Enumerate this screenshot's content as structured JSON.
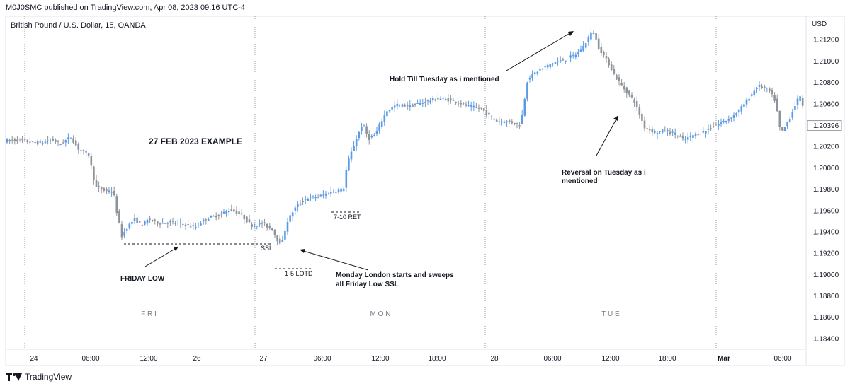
{
  "header": {
    "published_line": "M0J0SMC published on TradingView.com, Apr 08, 2023 09:16 UTC-4"
  },
  "footer": {
    "brand": "TradingView"
  },
  "chart_data": {
    "type": "candlestick",
    "symbol_line": "British Pound / U.S. Dollar, 15, OANDA",
    "currency_label": "USD",
    "ylim": [
      1.183,
      1.2142
    ],
    "y_ticks": [
      "1.21200",
      "1.21000",
      "1.20800",
      "1.20600",
      "1.20400",
      "1.20200",
      "1.20000",
      "1.19800",
      "1.19600",
      "1.19400",
      "1.19200",
      "1.19000",
      "1.18800",
      "1.18600",
      "1.18400"
    ],
    "last_price": "1.20396",
    "x_ticks": [
      "24",
      "06:00",
      "12:00",
      "26",
      "27",
      "06:00",
      "12:00",
      "18:00",
      "28",
      "06:00",
      "12:00",
      "18:00",
      "Mar",
      "06:00"
    ],
    "session_labels": [
      "F R I",
      "M O N",
      "T U E"
    ],
    "colors": {
      "up": "#5b9be6",
      "down": "#8e939a",
      "grid": "#9598a1",
      "text": "#131722"
    },
    "grid": false,
    "annotations": {
      "example_title": "27 FEB 2023 EXAMPLE",
      "friday_low": "FRIDAY LOW",
      "ssl": "SSL",
      "lotd": "1-5 LOTD",
      "ret": "7-10 RET",
      "monday_note_1": "Monday London starts and sweeps",
      "monday_note_2": "all Friday Low SSL",
      "hold_note": "Hold Till Tuesday as i mentioned",
      "reversal_note_1": "Reversal on Tuesday as i",
      "reversal_note_2": "mentioned"
    },
    "price_path": [
      [
        0,
        1.2025
      ],
      [
        25,
        1.2026
      ],
      [
        55,
        1.2023
      ],
      [
        75,
        1.2026
      ],
      [
        85,
        1.2022
      ],
      [
        100,
        1.2029
      ],
      [
        110,
        1.2018
      ],
      [
        125,
        1.2013
      ],
      [
        135,
        1.1982
      ],
      [
        150,
        1.1978
      ],
      [
        160,
        1.1978
      ],
      [
        165,
        1.1958
      ],
      [
        172,
        1.1936
      ],
      [
        180,
        1.1945
      ],
      [
        190,
        1.1952
      ],
      [
        200,
        1.1946
      ],
      [
        210,
        1.1952
      ],
      [
        225,
        1.1948
      ],
      [
        240,
        1.1949
      ],
      [
        260,
        1.1947
      ],
      [
        275,
        1.1944
      ],
      [
        290,
        1.1952
      ],
      [
        310,
        1.1956
      ],
      [
        325,
        1.1961
      ],
      [
        340,
        1.1956
      ],
      [
        355,
        1.1946
      ],
      [
        370,
        1.1948
      ],
      [
        385,
        1.1942
      ],
      [
        392,
        1.1932
      ],
      [
        398,
        1.1929
      ],
      [
        405,
        1.1949
      ],
      [
        415,
        1.1961
      ],
      [
        425,
        1.1968
      ],
      [
        435,
        1.1972
      ],
      [
        450,
        1.1973
      ],
      [
        470,
        1.1978
      ],
      [
        485,
        1.198
      ],
      [
        490,
        1.2003
      ],
      [
        500,
        1.2022
      ],
      [
        512,
        1.2042
      ],
      [
        520,
        1.2027
      ],
      [
        530,
        1.2031
      ],
      [
        545,
        1.2053
      ],
      [
        560,
        1.2059
      ],
      [
        580,
        1.2058
      ],
      [
        600,
        1.2062
      ],
      [
        620,
        1.2065
      ],
      [
        640,
        1.2063
      ],
      [
        660,
        1.2058
      ],
      [
        680,
        1.2055
      ],
      [
        700,
        1.2044
      ],
      [
        720,
        1.2043
      ],
      [
        735,
        1.204
      ],
      [
        745,
        1.2084
      ],
      [
        760,
        1.2091
      ],
      [
        780,
        1.2098
      ],
      [
        800,
        1.2102
      ],
      [
        815,
        1.2107
      ],
      [
        825,
        1.2115
      ],
      [
        837,
        1.2129
      ],
      [
        845,
        1.2113
      ],
      [
        860,
        1.2097
      ],
      [
        870,
        1.2084
      ],
      [
        880,
        1.2075
      ],
      [
        895,
        1.2063
      ],
      [
        910,
        1.2038
      ],
      [
        925,
        1.2033
      ],
      [
        940,
        1.2035
      ],
      [
        955,
        1.2031
      ],
      [
        965,
        1.2026
      ],
      [
        980,
        1.2031
      ],
      [
        995,
        1.2034
      ],
      [
        1010,
        1.204
      ],
      [
        1030,
        1.2046
      ],
      [
        1045,
        1.2055
      ],
      [
        1060,
        1.2068
      ],
      [
        1070,
        1.2077
      ],
      [
        1085,
        1.2073
      ],
      [
        1095,
        1.2062
      ],
      [
        1102,
        1.2032
      ],
      [
        1108,
        1.2038
      ],
      [
        1115,
        1.2047
      ],
      [
        1125,
        1.2063
      ],
      [
        1132,
        1.2067
      ],
      [
        1136,
        1.204
      ]
    ]
  }
}
